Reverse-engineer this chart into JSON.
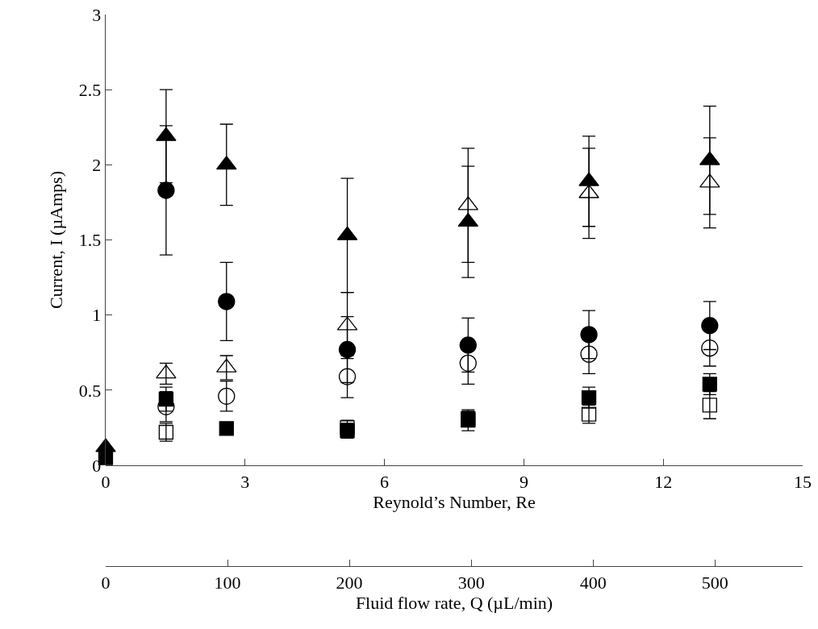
{
  "chart_data": {
    "type": "scatter",
    "xlabel": "Reynold’s Number, Re",
    "ylabel": "Current, I (µAmps)",
    "x2label": "Fluid flow rate, Q (µL/min)",
    "x": [
      0,
      1.3,
      2.6,
      5.2,
      7.8,
      10.4,
      13.0
    ],
    "series": [
      {
        "color": "#000000",
        "marker": "triangle",
        "values": [
          0.12,
          2.19,
          2.0,
          1.53,
          1.62,
          1.89,
          2.03
        ],
        "errors": [
          null,
          0.31,
          0.27,
          0.38,
          0.37,
          0.3,
          0.36
        ]
      },
      {
        "color": "#000000",
        "marker": "triangle-open",
        "values": [
          null,
          0.61,
          0.65,
          0.93,
          1.73,
          1.81,
          1.88
        ],
        "errors": [
          null,
          0.07,
          0.08,
          0.22,
          0.38,
          0.3,
          0.3
        ]
      },
      {
        "color": "#000000",
        "marker": "circle",
        "values": [
          null,
          1.83,
          1.09,
          0.77,
          0.8,
          0.87,
          0.93
        ],
        "errors": [
          null,
          0.43,
          0.26,
          0.22,
          0.18,
          0.16,
          0.16
        ]
      },
      {
        "color": "#000000",
        "marker": "circle-open",
        "values": [
          null,
          0.39,
          0.46,
          0.59,
          0.68,
          0.74,
          0.78
        ],
        "errors": [
          null,
          0.1,
          0.1,
          0.14,
          0.14,
          0.13,
          0.12
        ]
      },
      {
        "color": "#000000",
        "marker": "square",
        "values": [
          0.05,
          0.44,
          0.245,
          0.23,
          0.31,
          0.45,
          0.54
        ],
        "errors": [
          null,
          0.08,
          null,
          0.05,
          0.05,
          0.07,
          0.07
        ]
      },
      {
        "color": "#000000",
        "marker": "square-open",
        "values": [
          null,
          0.22,
          null,
          0.25,
          0.3,
          0.34,
          0.4
        ],
        "errors": [
          null,
          0.06,
          null,
          0.05,
          0.07,
          0.06,
          0.09
        ]
      }
    ],
    "xlim": [
      0,
      15
    ],
    "xticks": [
      0,
      3,
      6,
      9,
      12,
      15
    ],
    "x2lim": [
      0,
      572
    ],
    "x2ticks": [
      0,
      100,
      200,
      300,
      400,
      500
    ],
    "ylim": [
      0,
      3
    ],
    "yticks": [
      0,
      0.5,
      1,
      1.5,
      2,
      2.5,
      3
    ]
  }
}
